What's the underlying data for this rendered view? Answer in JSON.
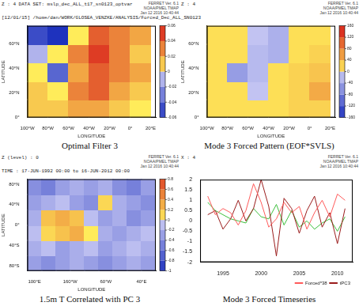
{
  "chart_data": [
    {
      "type": "heatmap",
      "title": "Optimal Filter 3",
      "header": [
        [
          "Z : 4",
          "DATA SET: mslp_dec_ALL_t17_sn0123_optvar"
        ],
        [
          "[12/01/15] /home/dan/WORK/GLOSEA_VENZKE/ANALYSIS/Forced_Dec_ALL_SN0123"
        ]
      ],
      "stamp": [
        "FERRET Ver. 6.1",
        "NOAA/PMEL TMAP",
        "Jan 12 2016 10:40:44"
      ],
      "x_label": "LONGITUDE",
      "y_label": "LATITUDE",
      "xlim": [
        -100,
        25
      ],
      "ylim": [
        0,
        75
      ],
      "xticks": [
        {
          "value": -100,
          "label": "100°W"
        },
        {
          "value": -80,
          "label": "80°W"
        },
        {
          "value": -60,
          "label": "60°W"
        },
        {
          "value": -40,
          "label": "40°W"
        },
        {
          "value": -20,
          "label": "20°W"
        },
        {
          "value": 0,
          "label": "0°"
        },
        {
          "value": 20,
          "label": "20°E"
        }
      ],
      "yticks": [
        {
          "value": 0,
          "label": "0°"
        },
        {
          "value": 20,
          "label": "20°N"
        },
        {
          "value": 40,
          "label": "40°N"
        },
        {
          "value": 60,
          "label": "60°N"
        }
      ],
      "x": [
        -90,
        -70,
        -50,
        -30,
        -10,
        10
      ],
      "y": [
        7.5,
        22.5,
        37.5,
        52.5,
        67.5
      ],
      "cells": [
        [
          0.01,
          0.01,
          0.02,
          0.02,
          0.01,
          0.0
        ],
        [
          0.01,
          0.0,
          0.03,
          0.04,
          0.02,
          0.01
        ],
        [
          0.0,
          -0.04,
          0.02,
          0.04,
          0.03,
          0.02
        ],
        [
          -0.01,
          0.0,
          0.03,
          0.05,
          0.03,
          0.01
        ],
        [
          -0.05,
          -0.06,
          0.0,
          0.04,
          0.03,
          0.02
        ]
      ],
      "colorbar": {
        "range": [
          -0.06,
          0.06
        ],
        "ticks": [
          -0.06,
          -0.04,
          -0.02,
          0,
          0.02,
          0.04,
          0.06
        ]
      }
    },
    {
      "type": "heatmap",
      "title": "Mode 3 Forced Pattern (EOF*SVLS)",
      "header": [
        [
          "Z : 4"
        ]
      ],
      "stamp": [
        "FERRET Ver. 6.1",
        "NOAA/PMEL TMAP",
        "Jan 12 2016 10:40:44"
      ],
      "x_label": "LONGITUDE",
      "y_label": "LATITUDE",
      "xlim": [
        -100,
        25
      ],
      "ylim": [
        0,
        75
      ],
      "xticks": [
        {
          "value": -100,
          "label": "100°W"
        },
        {
          "value": -80,
          "label": "80°W"
        },
        {
          "value": -60,
          "label": "60°W"
        },
        {
          "value": -40,
          "label": "40°W"
        },
        {
          "value": -20,
          "label": "20°W"
        },
        {
          "value": 0,
          "label": "0°"
        },
        {
          "value": 20,
          "label": "20°E"
        }
      ],
      "yticks": [
        {
          "value": 0,
          "label": "0°"
        },
        {
          "value": 20,
          "label": "20°N"
        },
        {
          "value": 40,
          "label": "40°N"
        },
        {
          "value": 60,
          "label": "60°N"
        }
      ],
      "x": [
        -90,
        -70,
        -50,
        -30,
        -10,
        10
      ],
      "y": [
        7.5,
        22.5,
        37.5,
        52.5,
        67.5
      ],
      "cells": [
        [
          10,
          10,
          10,
          10,
          20,
          20
        ],
        [
          10,
          10,
          -10,
          10,
          20,
          50
        ],
        [
          10,
          -50,
          -20,
          10,
          20,
          30
        ],
        [
          10,
          10,
          -20,
          -30,
          10,
          20
        ],
        [
          10,
          10,
          -10,
          -30,
          10,
          10
        ]
      ],
      "colorbar": {
        "range": [
          -160,
          160
        ],
        "ticks": [
          -160,
          -120,
          -80,
          -40,
          0,
          40,
          80,
          120,
          160
        ]
      }
    },
    {
      "type": "heatmap",
      "title": "1.5m T Correlated with PC 3",
      "header": [
        [
          "Z (level) : 0"
        ],
        [
          "TIME : 17-JUN-1992 00:00 to 16-JUN-2012 00:00"
        ]
      ],
      "stamp": [
        "FERRET Ver. 6.1",
        "NOAA/PMEL TMAP",
        "Jan 12 2016 10:40:44"
      ],
      "x_label": "LONGITUDE",
      "y_label": "LATITUDE",
      "xlim": [
        80,
        440
      ],
      "ylim": [
        -90,
        90
      ],
      "xticks": [
        {
          "value": 100,
          "label": "100°E"
        },
        {
          "value": 200,
          "label": "160°W"
        },
        {
          "value": 300,
          "label": "60°W"
        },
        {
          "value": 400,
          "label": "40°E"
        }
      ],
      "yticks": [
        {
          "value": -80,
          "label": "80°S"
        },
        {
          "value": -40,
          "label": "40°S"
        },
        {
          "value": 0,
          "label": "0°"
        },
        {
          "value": 40,
          "label": "40°N"
        },
        {
          "value": 80,
          "label": "80°N"
        }
      ],
      "x": [
        100,
        140,
        180,
        220,
        260,
        300,
        340,
        380,
        420
      ],
      "y": [
        -75,
        -45,
        -15,
        15,
        45,
        75
      ],
      "cells": [
        [
          -0.3,
          -0.4,
          -0.3,
          -0.2,
          -0.3,
          -0.4,
          -0.3,
          -0.2,
          -0.3
        ],
        [
          -0.2,
          -0.1,
          -0.3,
          -0.2,
          -0.1,
          -0.3,
          -0.2,
          -0.1,
          -0.2
        ],
        [
          -0.1,
          0.1,
          0.2,
          0.3,
          0.0,
          -0.2,
          -0.3,
          -0.2,
          -0.1
        ],
        [
          -0.2,
          0.2,
          0.3,
          0.2,
          -0.1,
          -0.3,
          -0.2,
          -0.4,
          -0.3
        ],
        [
          -0.3,
          -0.2,
          -0.1,
          -0.3,
          -0.4,
          0.1,
          -0.2,
          -0.3,
          -0.4
        ],
        [
          -0.4,
          -0.5,
          -0.3,
          -0.2,
          -0.3,
          -0.2,
          -0.4,
          -0.5,
          -0.3
        ]
      ],
      "colorbar": {
        "range": [
          -1,
          0.8
        ],
        "ticks": [
          -1,
          -0.8,
          -0.6,
          -0.4,
          -0.2,
          0,
          0.2,
          0.4,
          0.6,
          0.8
        ]
      }
    },
    {
      "type": "line",
      "title": "Mode 3 Forced Timeseries",
      "header": [
        [
          "X : 4"
        ]
      ],
      "stamp": [
        "FERRET Ver. 6.1",
        "NOAA/PMEL TMAP",
        "Jan 12 2016 10:40:44"
      ],
      "x": [
        1993,
        1994,
        1995,
        1996,
        1997,
        1998,
        1999,
        2000,
        2001,
        2002,
        2003,
        2004,
        2005,
        2006,
        2007,
        2008,
        2009,
        2010,
        2011
      ],
      "xlim": [
        1992,
        2012
      ],
      "xticks": [
        1995,
        2000,
        2005,
        2010
      ],
      "ylim": [
        -2,
        2
      ],
      "yticks": [
        -2,
        -1.5,
        -1,
        -0.5,
        0,
        0.5,
        1,
        1.5,
        2
      ],
      "grid": false,
      "legend": "bottom right",
      "series": [
        {
          "name": "Forced*38",
          "color": "#ff5a5a",
          "values": [
            1.2,
            0.3,
            0.6,
            0.4,
            -0.2,
            0.5,
            1.8,
            0.9,
            -0.3,
            0.1,
            0.9,
            0.4,
            0.7,
            -0.4,
            0.4,
            1.0,
            0.2,
            1.3,
            1.0
          ]
        },
        {
          "name": "tPC3",
          "color": "#9a1c1c",
          "values": [
            0.3,
            0.5,
            -0.4,
            0.1,
            1.0,
            0.0,
            0.6,
            2.0,
            0.7,
            -1.7,
            1.1,
            0.6,
            -0.6,
            0.5,
            1.2,
            -0.3,
            0.4,
            -1.1,
            0.6
          ]
        },
        {
          "color": "#3cbf3c",
          "values": [
            0.9,
            0.5,
            0.3,
            0.1,
            0.0,
            -0.1,
            0.6,
            0.2,
            0.1,
            0.8,
            -0.2,
            0.5,
            -0.3,
            0.0,
            -0.4,
            -0.1,
            0.1,
            -0.5,
            0.2
          ]
        }
      ]
    }
  ]
}
